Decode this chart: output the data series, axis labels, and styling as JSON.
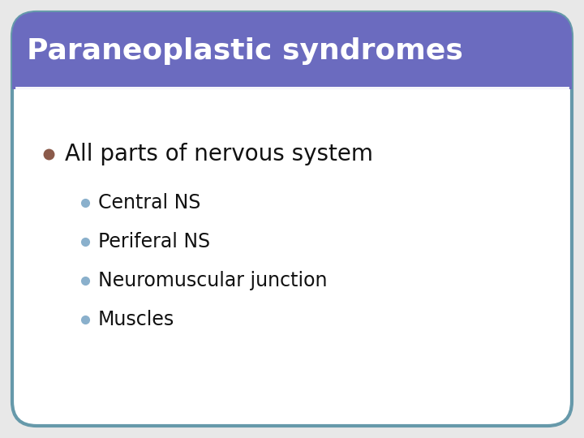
{
  "title": "Paraneoplastic syndromes",
  "title_bg_color": "#6b6bbf",
  "title_text_color": "#ffffff",
  "title_fontsize": 26,
  "slide_bg_color": "#ffffff",
  "border_color": "#6699aa",
  "main_bullet_text": "All parts of nervous system",
  "main_bullet_color": "#8B5A4A",
  "main_bullet_fontsize": 20,
  "sub_bullets": [
    "Central NS",
    "Periferal NS",
    "Neuromuscular junction",
    "Muscles"
  ],
  "sub_bullet_color": "#8ab0cc",
  "sub_bullet_fontsize": 17,
  "sub_text_color": "#111111",
  "separator_color": "#ffffff",
  "outer_bg": "#e8e8e8"
}
